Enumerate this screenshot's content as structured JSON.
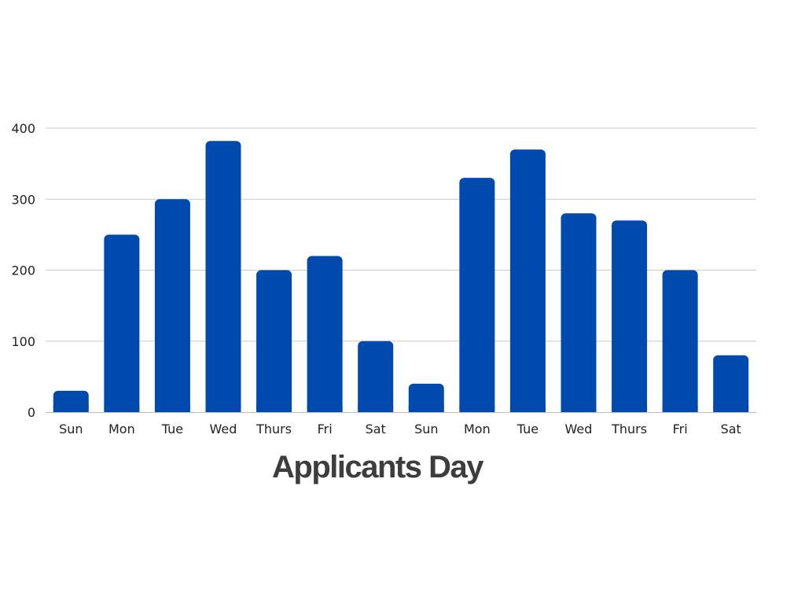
{
  "chart_data": {
    "type": "bar",
    "title": "Applicants Day",
    "xlabel": "",
    "ylabel": "",
    "categories": [
      "Sun",
      "Mon",
      "Tue",
      "Wed",
      "Thurs",
      "Fri",
      "Sat",
      "Sun",
      "Mon",
      "Tue",
      "Wed",
      "Thurs",
      "Fri",
      "Sat"
    ],
    "values": [
      30,
      250,
      300,
      382,
      200,
      220,
      100,
      40,
      330,
      370,
      280,
      270,
      200,
      80
    ],
    "ylim": [
      0,
      400
    ],
    "yticks": [
      0,
      100,
      200,
      300,
      400
    ],
    "grid": true,
    "legend": "none",
    "colors": {
      "bar": "#004aad",
      "grid": "#cccccc",
      "axis": "#bbbbbb",
      "text": "#222222",
      "title": "#3d3d3d"
    }
  }
}
